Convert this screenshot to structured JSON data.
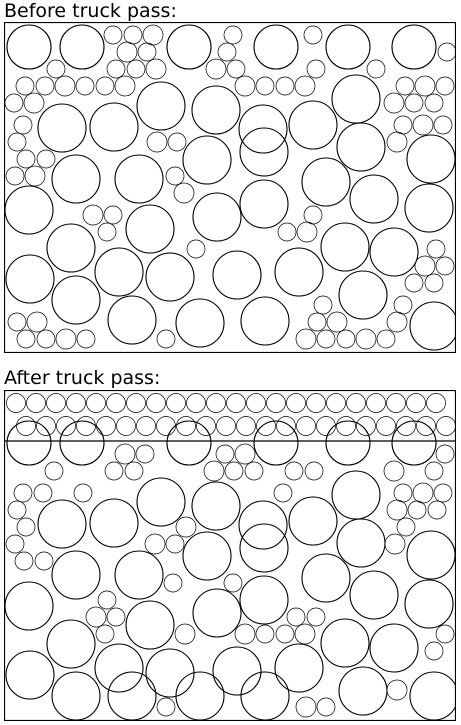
{
  "before": {
    "caption": "Before truck pass:"
  },
  "after": {
    "caption": "After truck pass:"
  },
  "colors": {
    "stroke": "#000000",
    "background": "#ffffff"
  }
}
